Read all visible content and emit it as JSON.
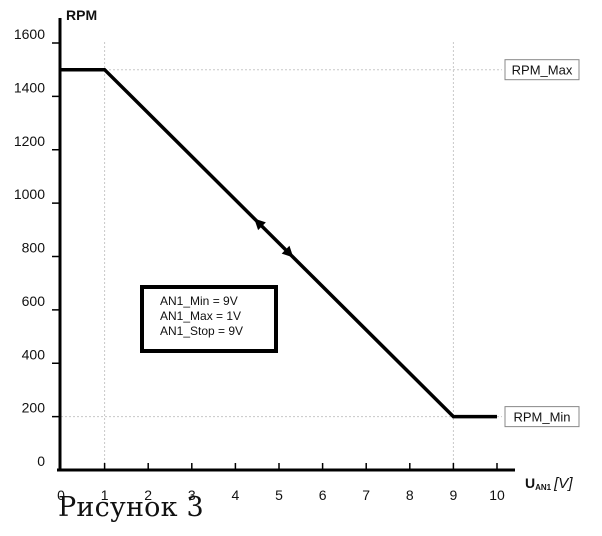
{
  "chart_data": {
    "type": "line",
    "ylabel": "RPM",
    "xlabel_main": "U",
    "xlabel_sub": "AN1",
    "xlabel_unit": "[V]",
    "xlim": [
      0,
      10
    ],
    "ylim": [
      0,
      1600
    ],
    "x_ticks": [
      0,
      1,
      2,
      3,
      4,
      5,
      6,
      7,
      8,
      9,
      10
    ],
    "y_ticks": [
      0,
      200,
      400,
      600,
      800,
      1000,
      1200,
      1400,
      1600
    ],
    "series": [
      {
        "x": [
          0,
          1,
          9,
          10
        ],
        "y": [
          1500,
          1500,
          200,
          200
        ]
      }
    ],
    "reference_lines": [
      {
        "axis": "y",
        "value": 1500,
        "label": "RPM_Max"
      },
      {
        "axis": "y",
        "value": 200,
        "label": "RPM_Min"
      },
      {
        "axis": "x",
        "value": 1
      },
      {
        "axis": "x",
        "value": 9
      }
    ],
    "annotation_box": [
      "AN1_Min = 9V",
      "AN1_Max = 1V",
      "AN1_Stop = 9V"
    ],
    "grid": false
  },
  "caption": "Рисунок 3"
}
